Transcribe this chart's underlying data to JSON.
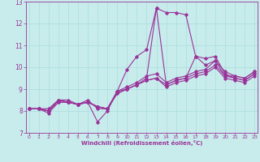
{
  "title": "",
  "xlabel": "Windchill (Refroidissement éolien,°C)",
  "ylabel": "",
  "bg_color": "#c8ecec",
  "line_color": "#993399",
  "grid_color": "#aadddd",
  "xmin": 0,
  "xmax": 23,
  "ymin": 7,
  "ymax": 13,
  "xticks": [
    0,
    1,
    2,
    3,
    4,
    5,
    6,
    7,
    8,
    9,
    10,
    11,
    12,
    13,
    14,
    15,
    16,
    17,
    18,
    19,
    20,
    21,
    22,
    23
  ],
  "yticks": [
    7,
    8,
    9,
    10,
    11,
    12,
    13
  ],
  "series": [
    [
      0,
      8.1
    ],
    [
      1,
      8.1
    ],
    [
      2,
      8.1
    ],
    [
      3,
      8.5
    ],
    [
      4,
      8.5
    ],
    [
      5,
      8.3
    ],
    [
      6,
      8.5
    ],
    [
      7,
      8.1
    ],
    [
      8,
      8.1
    ],
    [
      9,
      8.9
    ],
    [
      10,
      9.9
    ],
    [
      11,
      10.5
    ],
    [
      12,
      10.8
    ],
    [
      13,
      12.7
    ],
    [
      14,
      12.5
    ],
    [
      15,
      12.5
    ],
    [
      16,
      12.4
    ],
    [
      17,
      10.5
    ],
    [
      18,
      10.1
    ],
    [
      19,
      10.3
    ],
    [
      20,
      9.6
    ],
    [
      21,
      9.6
    ],
    [
      22,
      9.5
    ],
    [
      23,
      9.8
    ]
  ],
  "series2": [
    [
      0,
      8.1
    ],
    [
      1,
      8.1
    ],
    [
      2,
      8.0
    ],
    [
      3,
      8.5
    ],
    [
      4,
      8.4
    ],
    [
      5,
      8.3
    ],
    [
      6,
      8.4
    ],
    [
      7,
      7.5
    ],
    [
      8,
      8.0
    ],
    [
      9,
      8.9
    ],
    [
      10,
      9.0
    ],
    [
      11,
      9.2
    ],
    [
      12,
      9.5
    ],
    [
      13,
      12.7
    ],
    [
      14,
      9.2
    ],
    [
      15,
      9.4
    ],
    [
      16,
      9.5
    ],
    [
      17,
      10.5
    ],
    [
      18,
      10.4
    ],
    [
      19,
      10.5
    ],
    [
      20,
      9.7
    ],
    [
      21,
      9.5
    ],
    [
      22,
      9.4
    ],
    [
      23,
      9.7
    ]
  ],
  "series3": [
    [
      0,
      8.1
    ],
    [
      1,
      8.1
    ],
    [
      2,
      8.0
    ],
    [
      3,
      8.5
    ],
    [
      4,
      8.4
    ],
    [
      5,
      8.3
    ],
    [
      6,
      8.4
    ],
    [
      7,
      8.2
    ],
    [
      8,
      8.1
    ],
    [
      9,
      8.9
    ],
    [
      10,
      9.1
    ],
    [
      11,
      9.3
    ],
    [
      12,
      9.6
    ],
    [
      13,
      9.7
    ],
    [
      14,
      9.3
    ],
    [
      15,
      9.5
    ],
    [
      16,
      9.6
    ],
    [
      17,
      9.8
    ],
    [
      18,
      9.9
    ],
    [
      19,
      10.3
    ],
    [
      20,
      9.8
    ],
    [
      21,
      9.6
    ],
    [
      22,
      9.5
    ],
    [
      23,
      9.8
    ]
  ],
  "series4": [
    [
      0,
      8.1
    ],
    [
      1,
      8.1
    ],
    [
      2,
      8.0
    ],
    [
      3,
      8.4
    ],
    [
      4,
      8.4
    ],
    [
      5,
      8.3
    ],
    [
      6,
      8.4
    ],
    [
      7,
      8.2
    ],
    [
      8,
      8.1
    ],
    [
      9,
      8.8
    ],
    [
      10,
      9.0
    ],
    [
      11,
      9.2
    ],
    [
      12,
      9.4
    ],
    [
      13,
      9.5
    ],
    [
      14,
      9.2
    ],
    [
      15,
      9.4
    ],
    [
      16,
      9.5
    ],
    [
      17,
      9.7
    ],
    [
      18,
      9.8
    ],
    [
      19,
      10.1
    ],
    [
      20,
      9.6
    ],
    [
      21,
      9.5
    ],
    [
      22,
      9.4
    ],
    [
      23,
      9.7
    ]
  ],
  "series5": [
    [
      0,
      8.1
    ],
    [
      1,
      8.1
    ],
    [
      2,
      7.9
    ],
    [
      3,
      8.4
    ],
    [
      4,
      8.4
    ],
    [
      5,
      8.3
    ],
    [
      6,
      8.4
    ],
    [
      7,
      8.2
    ],
    [
      8,
      8.1
    ],
    [
      9,
      8.8
    ],
    [
      10,
      9.0
    ],
    [
      11,
      9.2
    ],
    [
      12,
      9.4
    ],
    [
      13,
      9.5
    ],
    [
      14,
      9.1
    ],
    [
      15,
      9.3
    ],
    [
      16,
      9.4
    ],
    [
      17,
      9.6
    ],
    [
      18,
      9.7
    ],
    [
      19,
      10.0
    ],
    [
      20,
      9.5
    ],
    [
      21,
      9.4
    ],
    [
      22,
      9.3
    ],
    [
      23,
      9.6
    ]
  ]
}
